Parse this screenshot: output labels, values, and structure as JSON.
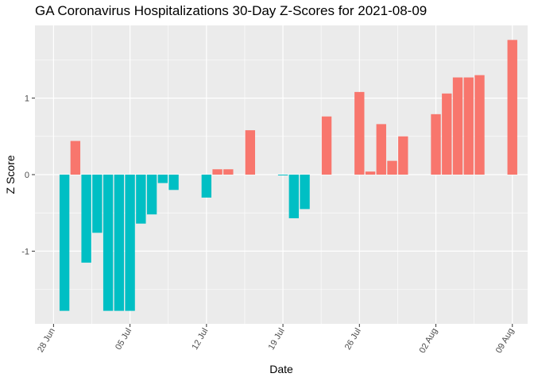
{
  "chart_data": {
    "type": "bar",
    "title": "GA Coronavirus Hospitalizations 30-Day Z-Scores for 2021-08-09",
    "xlabel": "Date",
    "ylabel": "Z Score",
    "x_ticks": [
      "28 Jun",
      "05 Jul",
      "12 Jul",
      "19 Jul",
      "26 Jul",
      "02 Aug",
      "09 Aug"
    ],
    "y_ticks": [
      -1,
      0,
      1
    ],
    "ylim": [
      -1.95,
      1.95
    ],
    "xlim_days_from_28_Jun": [
      -1.7,
      43.4
    ],
    "grid": true,
    "legend": "none",
    "colors": {
      "positive": "#F8766D",
      "negative": "#00BFC4",
      "panel": "#EBEBEB",
      "grid": "#FFFFFF"
    },
    "points": [
      {
        "date": "2021-06-29",
        "value": -1.78
      },
      {
        "date": "2021-06-30",
        "value": 0.44
      },
      {
        "date": "2021-07-01",
        "value": -1.15
      },
      {
        "date": "2021-07-02",
        "value": -0.76
      },
      {
        "date": "2021-07-03",
        "value": -1.78
      },
      {
        "date": "2021-07-04",
        "value": -1.78
      },
      {
        "date": "2021-07-05",
        "value": -1.78
      },
      {
        "date": "2021-07-06",
        "value": -0.64
      },
      {
        "date": "2021-07-07",
        "value": -0.52
      },
      {
        "date": "2021-07-08",
        "value": -0.11
      },
      {
        "date": "2021-07-09",
        "value": -0.2
      },
      {
        "date": "2021-07-12",
        "value": -0.3
      },
      {
        "date": "2021-07-13",
        "value": 0.07
      },
      {
        "date": "2021-07-14",
        "value": 0.07
      },
      {
        "date": "2021-07-16",
        "value": 0.58
      },
      {
        "date": "2021-07-19",
        "value": -0.01
      },
      {
        "date": "2021-07-20",
        "value": -0.57
      },
      {
        "date": "2021-07-21",
        "value": -0.45
      },
      {
        "date": "2021-07-23",
        "value": 0.76
      },
      {
        "date": "2021-07-26",
        "value": 1.08
      },
      {
        "date": "2021-07-27",
        "value": 0.04
      },
      {
        "date": "2021-07-28",
        "value": 0.66
      },
      {
        "date": "2021-07-29",
        "value": 0.18
      },
      {
        "date": "2021-07-30",
        "value": 0.5
      },
      {
        "date": "2021-08-02",
        "value": 0.79
      },
      {
        "date": "2021-08-03",
        "value": 1.06
      },
      {
        "date": "2021-08-04",
        "value": 1.27
      },
      {
        "date": "2021-08-05",
        "value": 1.27
      },
      {
        "date": "2021-08-06",
        "value": 1.3
      },
      {
        "date": "2021-08-09",
        "value": 1.76
      }
    ]
  }
}
